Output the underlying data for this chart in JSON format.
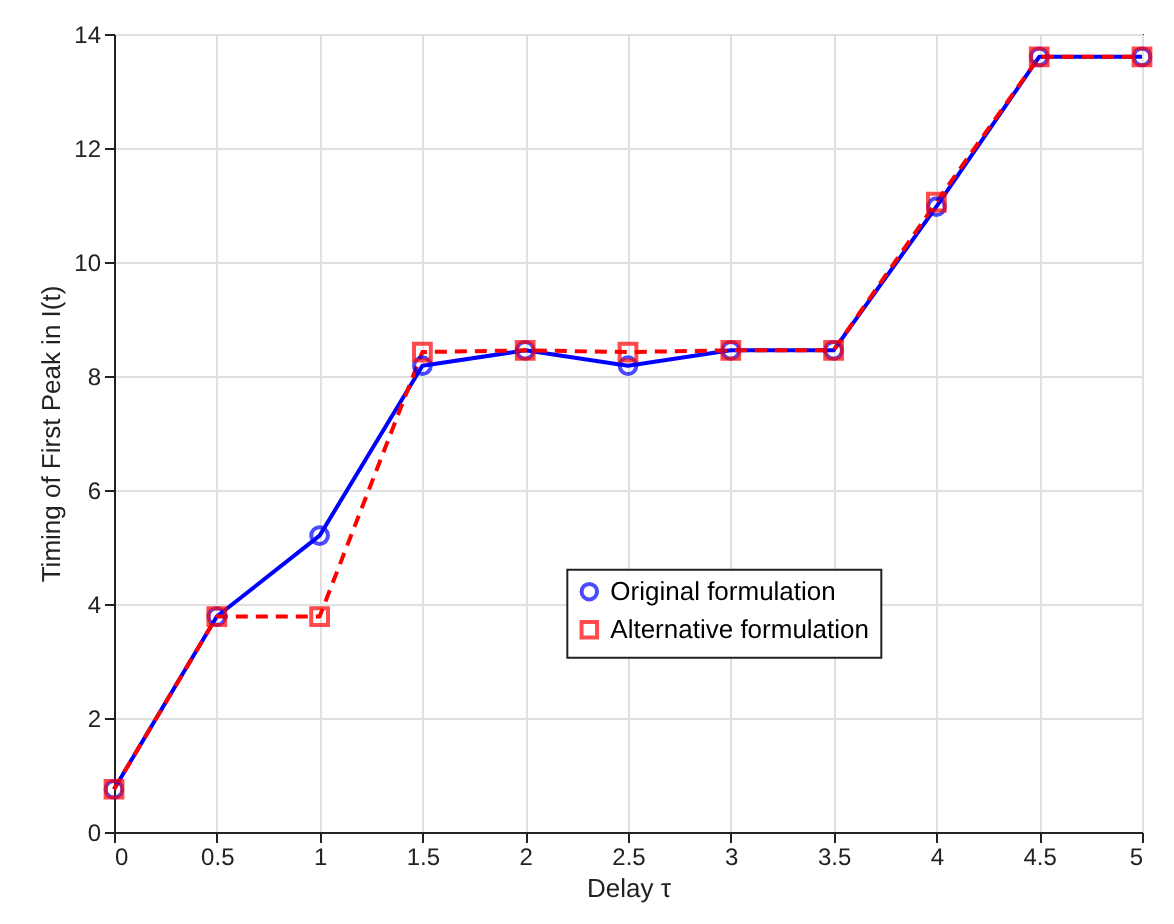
{
  "chart_data": {
    "type": "line",
    "xlabel": "Delay τ",
    "ylabel": "Timing of First Peak in I(t)",
    "x": [
      0,
      0.5,
      1,
      1.5,
      2,
      2.5,
      3,
      3.5,
      4,
      4.5,
      5
    ],
    "series": [
      {
        "name": "Original formulation",
        "color": "#0000ff",
        "marker": "circle",
        "line_style": "solid",
        "values": [
          0.75,
          3.78,
          5.2,
          8.18,
          8.45,
          8.18,
          8.45,
          8.45,
          10.97,
          13.6,
          13.6
        ]
      },
      {
        "name": "Alternative formulation",
        "color": "#ff0000",
        "marker": "square",
        "line_style": "dashed",
        "values": [
          0.75,
          3.78,
          3.78,
          8.42,
          8.45,
          8.42,
          8.45,
          8.45,
          11.05,
          13.6,
          13.6
        ]
      }
    ],
    "xlim": [
      0,
      5
    ],
    "xticks": [
      0,
      0.5,
      1,
      1.5,
      2,
      2.5,
      3,
      3.5,
      4,
      4.5,
      5
    ],
    "ylim": [
      0,
      14
    ],
    "yticks": [
      0,
      2,
      4,
      6,
      8,
      10,
      12,
      14
    ],
    "grid": true,
    "legend": "right"
  }
}
